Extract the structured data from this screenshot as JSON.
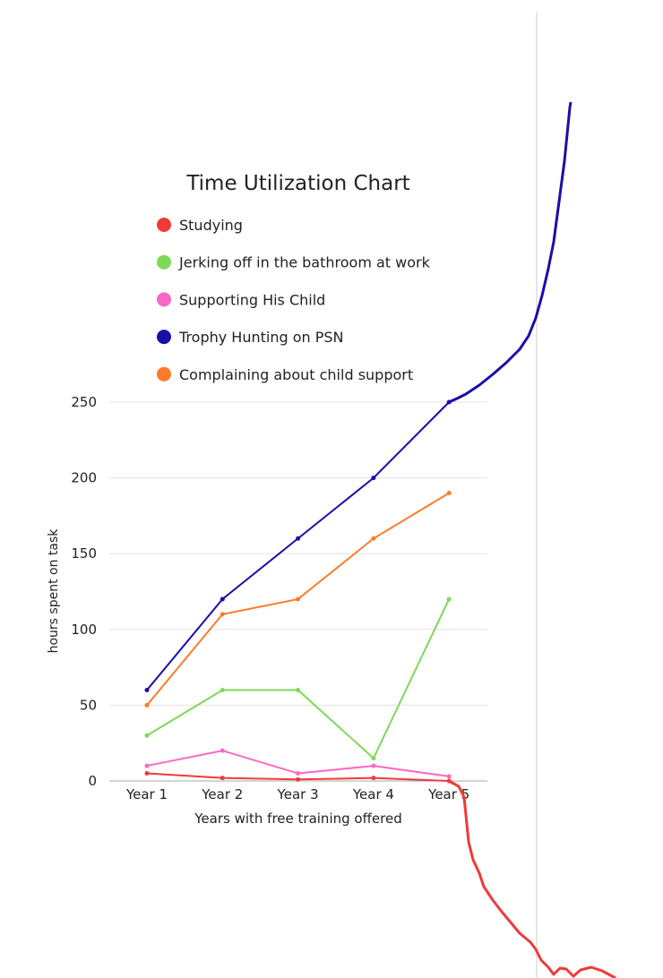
{
  "chart_data": {
    "type": "line",
    "title": "Time Utilization Chart",
    "xlabel": "Years with free training offered",
    "ylabel": "hours spent on task",
    "categories": [
      "Year 1",
      "Year 2",
      "Year 3",
      "Year 4",
      "Year 5"
    ],
    "ylim": [
      0,
      250
    ],
    "yticks": [
      0,
      50,
      100,
      150,
      200,
      250
    ],
    "grid": true,
    "legend_position": "top-left",
    "series": [
      {
        "name": "Studying",
        "color": "#f03a3a",
        "values": [
          5,
          2,
          1,
          2,
          0
        ]
      },
      {
        "name": "Jerking off in the bathroom at work",
        "color": "#7ed957",
        "values": [
          30,
          60,
          60,
          15,
          120
        ]
      },
      {
        "name": "Supporting His Child",
        "color": "#ff66c4",
        "values": [
          10,
          20,
          5,
          10,
          3
        ]
      },
      {
        "name": "Trophy Hunting on PSN",
        "color": "#1a0ea8",
        "values": [
          60,
          120,
          160,
          200,
          250
        ]
      },
      {
        "name": "Complaining about child support",
        "color": "#ff7b29",
        "values": [
          50,
          110,
          120,
          160,
          190
        ]
      }
    ]
  }
}
